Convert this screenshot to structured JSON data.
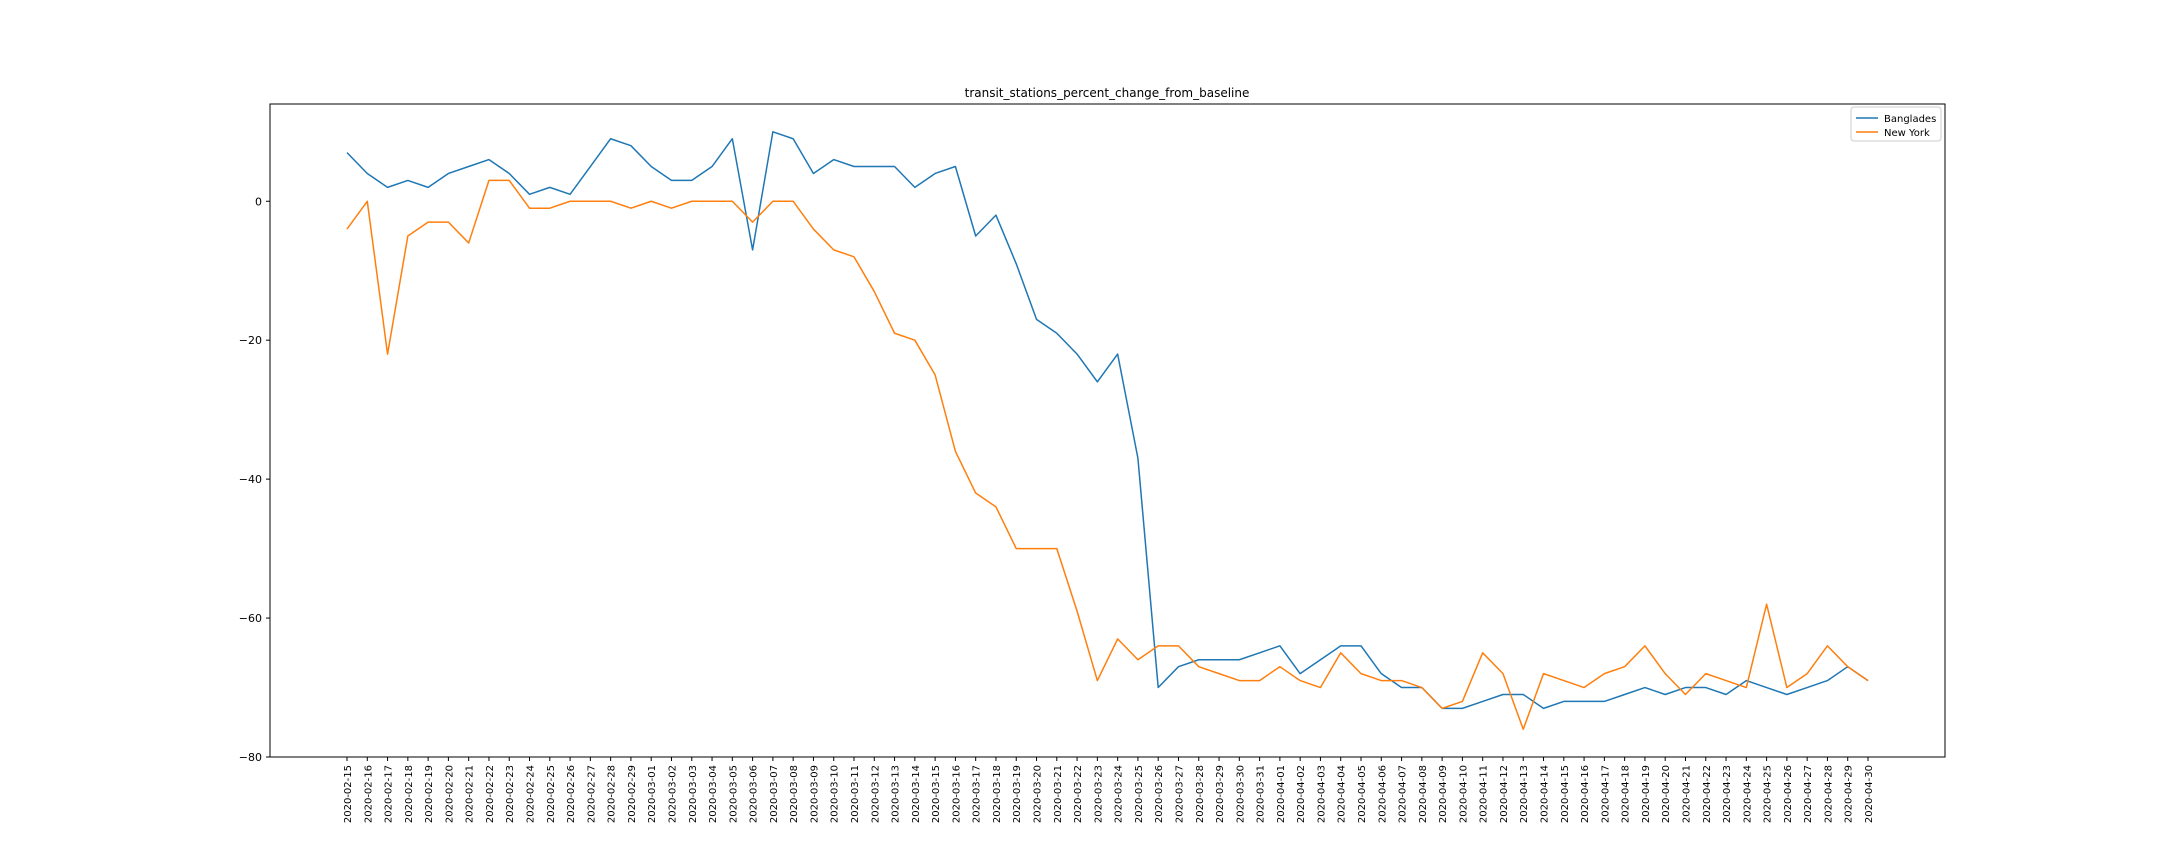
{
  "chart_data": {
    "type": "line",
    "title": "transit_stations_percent_change_from_baseline",
    "xlabel": "",
    "ylabel": "",
    "ylim": [
      -80,
      14
    ],
    "yticks": [
      0,
      -20,
      -40,
      -60,
      -80
    ],
    "grid": false,
    "legend_position": "top-right",
    "x": [
      "2020-02-15",
      "2020-02-16",
      "2020-02-17",
      "2020-02-18",
      "2020-02-19",
      "2020-02-20",
      "2020-02-21",
      "2020-02-22",
      "2020-02-23",
      "2020-02-24",
      "2020-02-25",
      "2020-02-26",
      "2020-02-27",
      "2020-02-28",
      "2020-02-29",
      "2020-03-01",
      "2020-03-02",
      "2020-03-03",
      "2020-03-04",
      "2020-03-05",
      "2020-03-06",
      "2020-03-07",
      "2020-03-08",
      "2020-03-09",
      "2020-03-10",
      "2020-03-11",
      "2020-03-12",
      "2020-03-13",
      "2020-03-14",
      "2020-03-15",
      "2020-03-16",
      "2020-03-17",
      "2020-03-18",
      "2020-03-19",
      "2020-03-20",
      "2020-03-21",
      "2020-03-22",
      "2020-03-23",
      "2020-03-24",
      "2020-03-25",
      "2020-03-26",
      "2020-03-27",
      "2020-03-28",
      "2020-03-29",
      "2020-03-30",
      "2020-03-31",
      "2020-04-01",
      "2020-04-02",
      "2020-04-03",
      "2020-04-04",
      "2020-04-05",
      "2020-04-06",
      "2020-04-07",
      "2020-04-08",
      "2020-04-09",
      "2020-04-10",
      "2020-04-11",
      "2020-04-12",
      "2020-04-13",
      "2020-04-14",
      "2020-04-15",
      "2020-04-16",
      "2020-04-17",
      "2020-04-18",
      "2020-04-19",
      "2020-04-20",
      "2020-04-21",
      "2020-04-22",
      "2020-04-23",
      "2020-04-24",
      "2020-04-25",
      "2020-04-26",
      "2020-04-27",
      "2020-04-28",
      "2020-04-29",
      "2020-04-30"
    ],
    "series": [
      {
        "name": "Banglades",
        "color": "#1f77b4",
        "values": [
          7,
          4,
          2,
          3,
          2,
          4,
          5,
          6,
          4,
          1,
          2,
          1,
          5,
          9,
          8,
          5,
          3,
          3,
          5,
          9,
          -7,
          10,
          9,
          4,
          6,
          5,
          5,
          5,
          2,
          4,
          5,
          -5,
          -2,
          -9,
          -17,
          -19,
          -22,
          -26,
          -22,
          -37,
          -70,
          -67,
          -66,
          -66,
          -66,
          -65,
          -64,
          -68,
          -66,
          -64,
          -64,
          -68,
          -70,
          -70,
          -73,
          -73,
          -72,
          -71,
          -71,
          -73,
          -72,
          -72,
          -72,
          -71,
          -70,
          -71,
          -70,
          -70,
          -71,
          -69,
          -70,
          -71,
          -70,
          -69,
          -67,
          -69
        ]
      },
      {
        "name": "New York",
        "color": "#ff7f0e",
        "values": [
          -4,
          0,
          -22,
          -5,
          -3,
          -3,
          -6,
          3,
          3,
          -1,
          -1,
          0,
          0,
          0,
          -1,
          0,
          -1,
          0,
          0,
          0,
          -3,
          0,
          0,
          -4,
          -7,
          -8,
          -13,
          -19,
          -20,
          -25,
          -36,
          -42,
          -44,
          -50,
          -50,
          -50,
          -59,
          -69,
          -63,
          -66,
          -64,
          -64,
          -67,
          -68,
          -69,
          -69,
          -67,
          -69,
          -70,
          -65,
          -68,
          -69,
          -69,
          -70,
          -73,
          -72,
          -65,
          -68,
          -76,
          -68,
          -69,
          -70,
          -68,
          -67,
          -64,
          -68,
          -71,
          -68,
          -69,
          -70,
          -58,
          -70,
          -68,
          -64,
          -67,
          -69
        ]
      }
    ]
  }
}
